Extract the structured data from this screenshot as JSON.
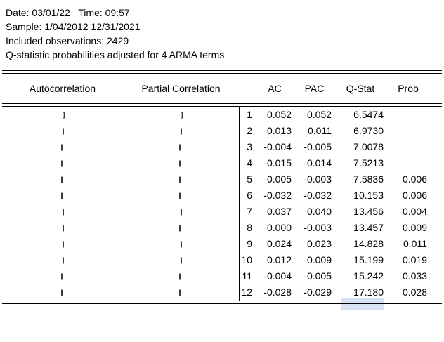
{
  "report": {
    "date_line": "Date: 03/01/22   Time: 09:57",
    "sample_line": "Sample: 1/04/2012 12/31/2021",
    "observations_line": "Included observations: 2429",
    "note_line": "Q-statistic probabilities adjusted for 4 ARMA terms"
  },
  "table": {
    "headers": {
      "autocorrelation": "Autocorrelation",
      "partial_correlation": "Partial Correlation",
      "ac": "AC",
      "pac": "PAC",
      "qstat": "Q-Stat",
      "prob": "Prob"
    },
    "rows": [
      {
        "lag": "1",
        "ac": "0.052",
        "pac": "0.052",
        "qstat": "6.5474",
        "prob": ""
      },
      {
        "lag": "2",
        "ac": "0.013",
        "pac": "0.011",
        "qstat": "6.9730",
        "prob": ""
      },
      {
        "lag": "3",
        "ac": "-0.004",
        "pac": "-0.005",
        "qstat": "7.0078",
        "prob": ""
      },
      {
        "lag": "4",
        "ac": "-0.015",
        "pac": "-0.014",
        "qstat": "7.5213",
        "prob": ""
      },
      {
        "lag": "5",
        "ac": "-0.005",
        "pac": "-0.003",
        "qstat": "7.5836",
        "prob": "0.006"
      },
      {
        "lag": "6",
        "ac": "-0.032",
        "pac": "-0.032",
        "qstat": "10.153",
        "prob": "0.006"
      },
      {
        "lag": "7",
        "ac": "0.037",
        "pac": "0.040",
        "qstat": "13.456",
        "prob": "0.004"
      },
      {
        "lag": "8",
        "ac": "0.000",
        "pac": "-0.003",
        "qstat": "13.457",
        "prob": "0.009"
      },
      {
        "lag": "9",
        "ac": "0.024",
        "pac": "0.023",
        "qstat": "14.828",
        "prob": "0.011"
      },
      {
        "lag": "10",
        "ac": "0.012",
        "pac": "0.009",
        "qstat": "15.199",
        "prob": "0.019"
      },
      {
        "lag": "11",
        "ac": "-0.004",
        "pac": "-0.005",
        "qstat": "15.242",
        "prob": "0.033"
      },
      {
        "lag": "12",
        "ac": "-0.028",
        "pac": "-0.029",
        "qstat": "17.180",
        "prob": "0.028"
      }
    ]
  },
  "colors": {
    "selection": "#d9e2f3",
    "bar_fill": "#bdbdbd",
    "bar_border": "#3c3c3c",
    "centerline": "#777777",
    "rule": "#000000"
  }
}
